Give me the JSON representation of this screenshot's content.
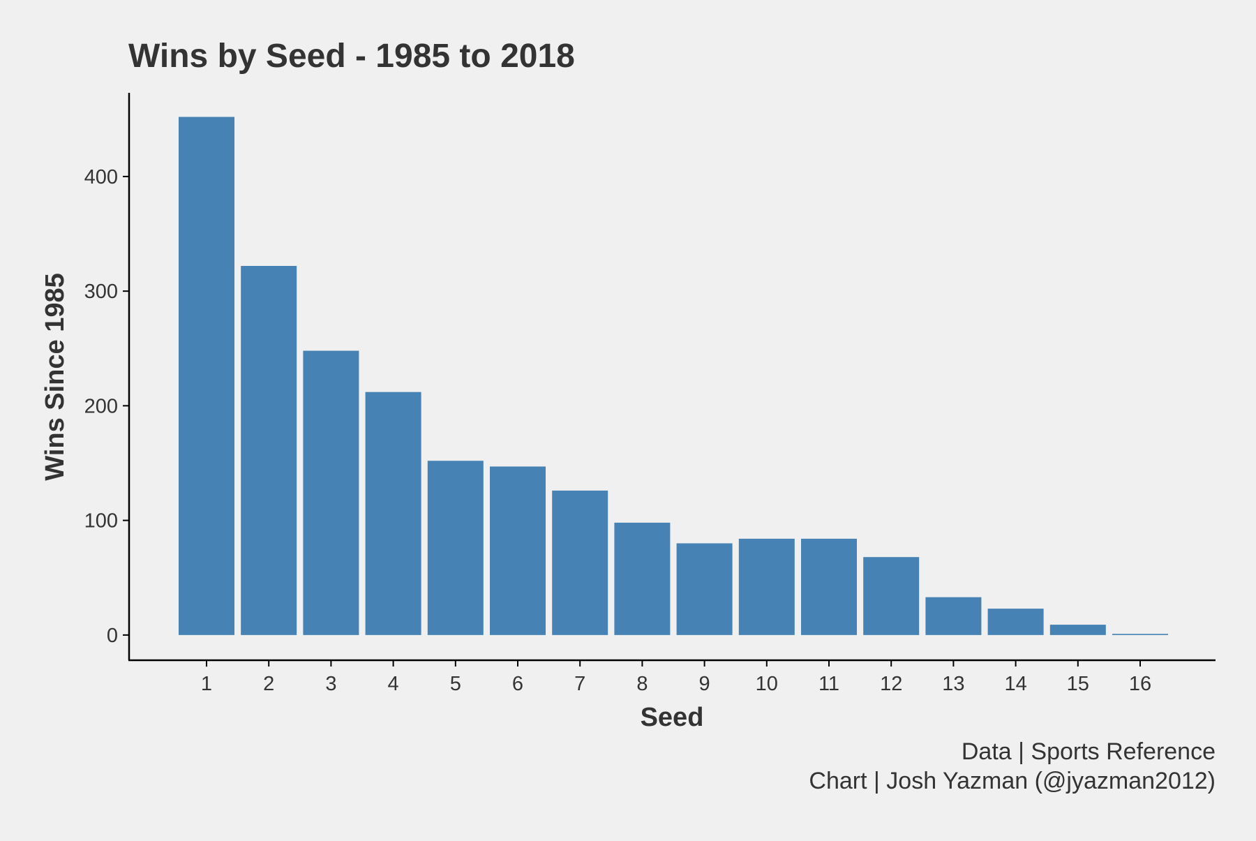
{
  "chart_data": {
    "type": "bar",
    "title": "Wins by Seed - 1985 to 2018",
    "xlabel": "Seed",
    "ylabel": "Wins Since 1985",
    "categories": [
      "1",
      "2",
      "3",
      "4",
      "5",
      "6",
      "7",
      "8",
      "9",
      "10",
      "11",
      "12",
      "13",
      "14",
      "15",
      "16"
    ],
    "values": [
      452,
      322,
      248,
      212,
      152,
      147,
      126,
      98,
      80,
      84,
      84,
      68,
      33,
      23,
      9,
      1
    ],
    "ylim": [
      -22,
      473
    ],
    "yticks": [
      0,
      100,
      200,
      300,
      400
    ],
    "grid": false,
    "legend": "none",
    "bar_color": "#4682b4",
    "captions": [
      "Data | Sports Reference",
      "Chart | Josh Yazman (@jyazman2012)"
    ]
  }
}
